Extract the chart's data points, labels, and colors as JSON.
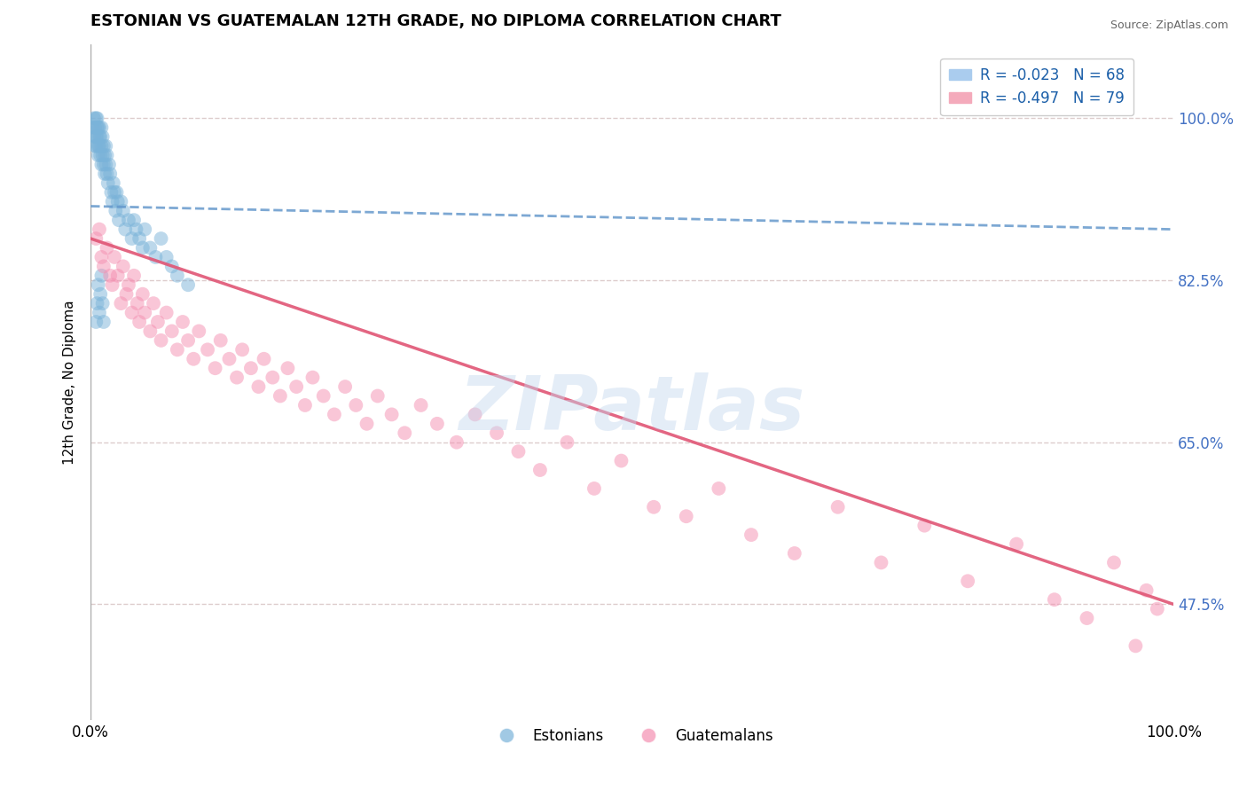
{
  "title": "ESTONIAN VS GUATEMALAN 12TH GRADE, NO DIPLOMA CORRELATION CHART",
  "source": "Source: ZipAtlas.com",
  "ylabel": "12th Grade, No Diploma",
  "xlim": [
    0.0,
    1.0
  ],
  "ylim": [
    0.35,
    1.08
  ],
  "yticks": [
    0.475,
    0.65,
    0.825,
    1.0
  ],
  "ytick_labels": [
    "47.5%",
    "65.0%",
    "82.5%",
    "100.0%"
  ],
  "xtick_labels": [
    "0.0%",
    "100.0%"
  ],
  "watermark": "ZIPatlas",
  "estonian_x": [
    0.002,
    0.003,
    0.003,
    0.004,
    0.004,
    0.005,
    0.005,
    0.005,
    0.006,
    0.006,
    0.006,
    0.007,
    0.007,
    0.007,
    0.008,
    0.008,
    0.008,
    0.009,
    0.009,
    0.01,
    0.01,
    0.01,
    0.011,
    0.011,
    0.012,
    0.012,
    0.013,
    0.013,
    0.014,
    0.014,
    0.015,
    0.015,
    0.016,
    0.017,
    0.018,
    0.019,
    0.02,
    0.021,
    0.022,
    0.023,
    0.024,
    0.025,
    0.026,
    0.028,
    0.03,
    0.032,
    0.035,
    0.038,
    0.04,
    0.042,
    0.045,
    0.048,
    0.05,
    0.055,
    0.06,
    0.065,
    0.07,
    0.075,
    0.08,
    0.09,
    0.005,
    0.006,
    0.007,
    0.008,
    0.009,
    0.01,
    0.011,
    0.012
  ],
  "estonian_y": [
    0.99,
    0.98,
    1.0,
    0.97,
    0.99,
    0.98,
    1.0,
    0.97,
    0.99,
    0.98,
    1.0,
    0.97,
    0.99,
    0.96,
    0.98,
    0.97,
    0.99,
    0.96,
    0.98,
    0.97,
    0.95,
    0.99,
    0.96,
    0.98,
    0.95,
    0.97,
    0.94,
    0.96,
    0.95,
    0.97,
    0.94,
    0.96,
    0.93,
    0.95,
    0.94,
    0.92,
    0.91,
    0.93,
    0.92,
    0.9,
    0.92,
    0.91,
    0.89,
    0.91,
    0.9,
    0.88,
    0.89,
    0.87,
    0.89,
    0.88,
    0.87,
    0.86,
    0.88,
    0.86,
    0.85,
    0.87,
    0.85,
    0.84,
    0.83,
    0.82,
    0.78,
    0.8,
    0.82,
    0.79,
    0.81,
    0.83,
    0.8,
    0.78
  ],
  "guatemalan_x": [
    0.005,
    0.008,
    0.01,
    0.012,
    0.015,
    0.018,
    0.02,
    0.022,
    0.025,
    0.028,
    0.03,
    0.033,
    0.035,
    0.038,
    0.04,
    0.043,
    0.045,
    0.048,
    0.05,
    0.055,
    0.058,
    0.062,
    0.065,
    0.07,
    0.075,
    0.08,
    0.085,
    0.09,
    0.095,
    0.1,
    0.108,
    0.115,
    0.12,
    0.128,
    0.135,
    0.14,
    0.148,
    0.155,
    0.16,
    0.168,
    0.175,
    0.182,
    0.19,
    0.198,
    0.205,
    0.215,
    0.225,
    0.235,
    0.245,
    0.255,
    0.265,
    0.278,
    0.29,
    0.305,
    0.32,
    0.338,
    0.355,
    0.375,
    0.395,
    0.415,
    0.44,
    0.465,
    0.49,
    0.52,
    0.55,
    0.58,
    0.61,
    0.65,
    0.69,
    0.73,
    0.77,
    0.81,
    0.855,
    0.89,
    0.92,
    0.945,
    0.965,
    0.975,
    0.985
  ],
  "guatemalan_y": [
    0.87,
    0.88,
    0.85,
    0.84,
    0.86,
    0.83,
    0.82,
    0.85,
    0.83,
    0.8,
    0.84,
    0.81,
    0.82,
    0.79,
    0.83,
    0.8,
    0.78,
    0.81,
    0.79,
    0.77,
    0.8,
    0.78,
    0.76,
    0.79,
    0.77,
    0.75,
    0.78,
    0.76,
    0.74,
    0.77,
    0.75,
    0.73,
    0.76,
    0.74,
    0.72,
    0.75,
    0.73,
    0.71,
    0.74,
    0.72,
    0.7,
    0.73,
    0.71,
    0.69,
    0.72,
    0.7,
    0.68,
    0.71,
    0.69,
    0.67,
    0.7,
    0.68,
    0.66,
    0.69,
    0.67,
    0.65,
    0.68,
    0.66,
    0.64,
    0.62,
    0.65,
    0.6,
    0.63,
    0.58,
    0.57,
    0.6,
    0.55,
    0.53,
    0.58,
    0.52,
    0.56,
    0.5,
    0.54,
    0.48,
    0.46,
    0.52,
    0.43,
    0.49,
    0.47
  ],
  "blue_color": "#7ab3d9",
  "pink_color": "#f48fb1",
  "blue_trend_color": "#6699cc",
  "pink_trend_color": "#e05575",
  "background_color": "#ffffff",
  "grid_color": "#ddcccc",
  "title_fontsize": 13,
  "axis_label_fontsize": 11,
  "blue_trend_start_y": 0.905,
  "blue_trend_end_y": 0.88,
  "pink_trend_start_y": 0.87,
  "pink_trend_end_y": 0.475
}
